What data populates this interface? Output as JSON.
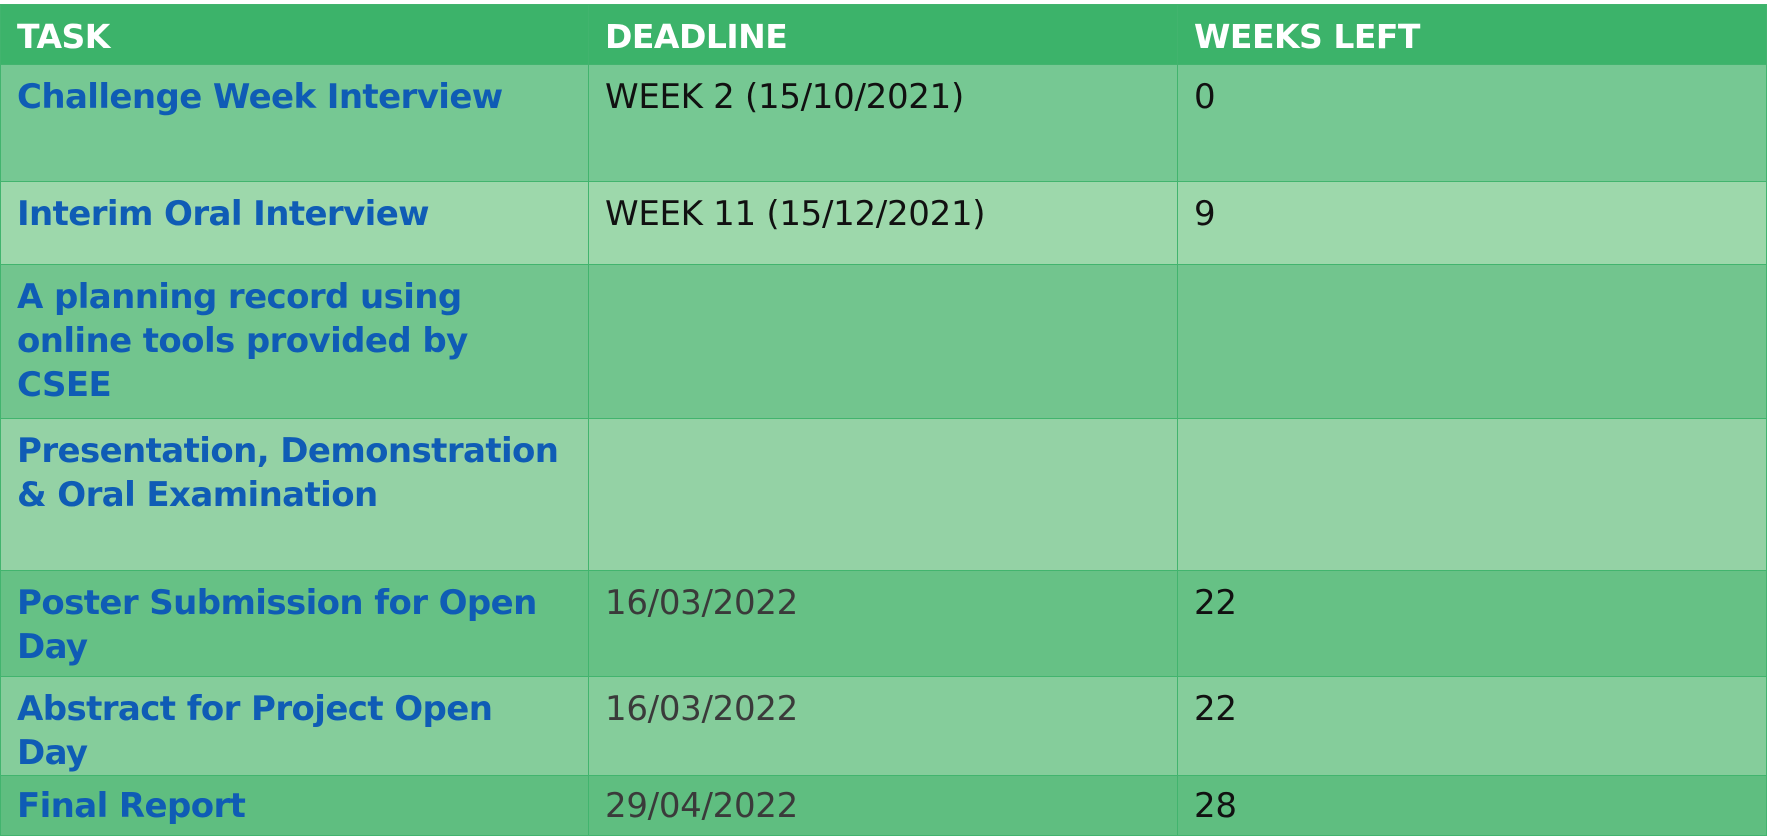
{
  "table": {
    "headers": [
      "TASK",
      "DEADLINE",
      "WEEKS LEFT"
    ],
    "rows": [
      {
        "task": "Challenge Week Interview",
        "deadline": "WEEK 2 (15/10/2021)",
        "weeks_left": "0"
      },
      {
        "task": "Interim Oral Interview",
        "deadline": "WEEK 11 (15/12/2021)",
        "weeks_left": "9"
      },
      {
        "task": "A planning record using online tools provided by CSEE",
        "deadline": "",
        "weeks_left": ""
      },
      {
        "task": "Presentation, Demonstration & Oral Examination",
        "deadline": "",
        "weeks_left": ""
      },
      {
        "task": "Poster Submission for Open Day",
        "deadline": "16/03/2022",
        "weeks_left": "22"
      },
      {
        "task": "Abstract for Project Open Day",
        "deadline": "16/03/2022",
        "weeks_left": "22"
      },
      {
        "task": "Final Report",
        "deadline": "29/04/2022",
        "weeks_left": "28"
      }
    ]
  },
  "colors": {
    "header_bg": "#3cb36a",
    "header_text": "#ffffff",
    "task_text": "#0f5cb5"
  }
}
